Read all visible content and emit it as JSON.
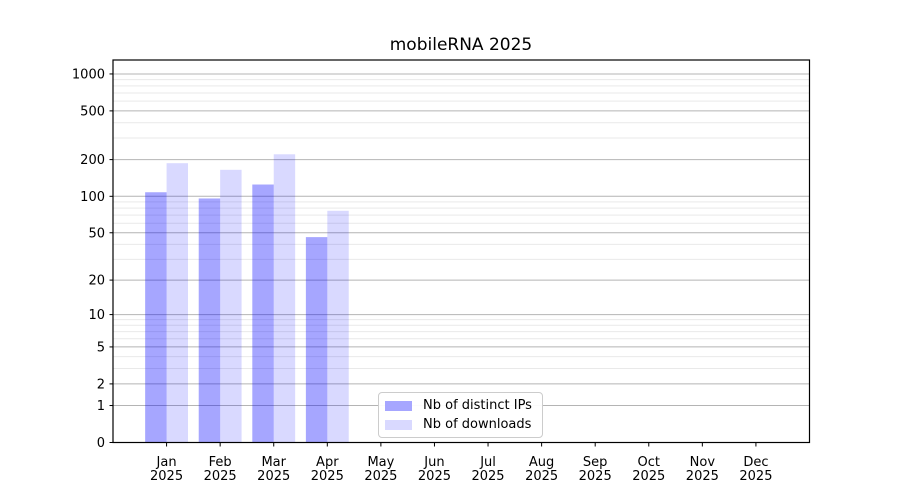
{
  "chart_data": {
    "type": "bar",
    "title": "mobileRNA 2025",
    "xlabel": "",
    "ylabel": "",
    "categories": [
      "Jan 2025",
      "Feb 2025",
      "Mar 2025",
      "Apr 2025",
      "May 2025",
      "Jun 2025",
      "Jul 2025",
      "Aug 2025",
      "Sep 2025",
      "Oct 2025",
      "Nov 2025",
      "Dec 2025"
    ],
    "series": [
      {
        "name": "Nb of distinct IPs",
        "base_color": "#0000ff",
        "alpha": 0.35,
        "fill_on_white": "#a6a6ff",
        "values": [
          108,
          96,
          125,
          46,
          0,
          0,
          0,
          0,
          0,
          0,
          0,
          0
        ]
      },
      {
        "name": "Nb of downloads",
        "base_color": "#0000ff",
        "alpha": 0.15,
        "fill_on_white": "#d9d9ff",
        "values": [
          187,
          165,
          221,
          76,
          0,
          0,
          0,
          0,
          0,
          0,
          0,
          0
        ]
      }
    ],
    "y_scale": "symlog-like (position proportional to log10(1+value))",
    "yticks": [
      0,
      1,
      2,
      5,
      10,
      20,
      50,
      100,
      200,
      500,
      1000
    ],
    "y_minor_ticks": [
      3,
      4,
      6,
      7,
      8,
      9,
      30,
      40,
      60,
      70,
      80,
      90,
      300,
      400,
      600,
      700,
      800,
      900
    ],
    "ylim": [
      0,
      1300
    ],
    "grid": "horizontal major + minor gridlines",
    "legend_position": "lower center-left inside plot",
    "colors": {
      "background": "#ffffff",
      "grid_major": "#b4b4b4",
      "grid_minor": "#e9e9e9",
      "axis": "#000000",
      "text": "#000000",
      "legend_border": "#cccccc"
    }
  }
}
